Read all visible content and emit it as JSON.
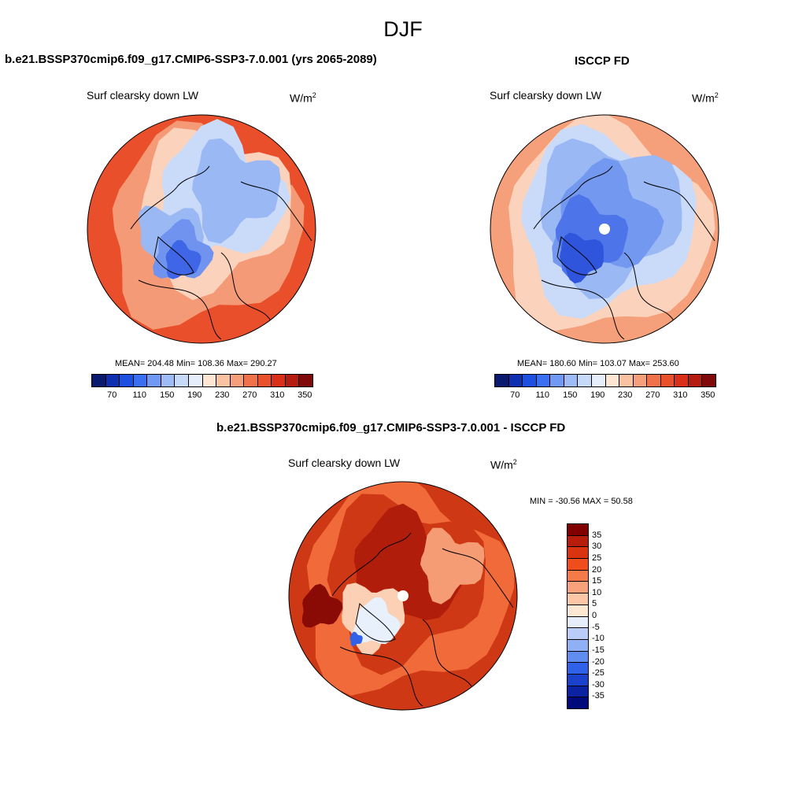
{
  "figure": {
    "title": "DJF",
    "units_base": "W/m",
    "units_exp": "2",
    "variable": "Surf clearsky down LW"
  },
  "panels": [
    {
      "title": "b.e21.BSSP370cmip6.f09_g17.CMIP6-SSP3-7.0.001 (yrs 2065-2089)",
      "stats": "MEAN= 204.48  Min= 108.36  Max= 290.27"
    },
    {
      "title": "ISCCP FD",
      "stats": "MEAN= 180.60  Min= 103.07  Max= 253.60"
    },
    {
      "title": "b.e21.BSSP370cmip6.f09_g17.CMIP6-SSP3-7.0.001 - ISCCP FD",
      "stats": "MIN = -30.56 MAX =  50.58"
    }
  ],
  "colorbar_abs": {
    "colors": [
      "#0a1a6e",
      "#0d2fb0",
      "#1d4fe0",
      "#3a6ff2",
      "#6f99f5",
      "#9dbbf7",
      "#c7d9f9",
      "#e7eefb",
      "#fde6d2",
      "#f9c2a0",
      "#f5a07a",
      "#f0714a",
      "#e8512b",
      "#d9301a",
      "#b51d10",
      "#800a0a"
    ],
    "tick_labels": [
      "70",
      "110",
      "150",
      "190",
      "230",
      "270",
      "310",
      "350"
    ]
  },
  "colorbar_diff": {
    "colors": [
      "#800000",
      "#b81d0c",
      "#d9330f",
      "#f04d1c",
      "#f57a4a",
      "#f9a17a",
      "#fbc7a6",
      "#fde6d2",
      "#e7eefb",
      "#b9cdf8",
      "#8fb0f4",
      "#5f8df0",
      "#2f62e8",
      "#1a42cc",
      "#0b23a2",
      "#000a7a"
    ],
    "tick_labels": [
      "35",
      "30",
      "25",
      "20",
      "15",
      "10",
      "5",
      "0",
      "-5",
      "-10",
      "-15",
      "-20",
      "-25",
      "-30",
      "-35"
    ]
  },
  "map_fills": {
    "model": [
      "#e94f2a",
      "#f59a76",
      "#fbd3bd",
      "#c9dbf9",
      "#9ab8f4",
      "#6f93ee",
      "#3e66e6"
    ],
    "obs": [
      "#f5a07a",
      "#fbd3bd",
      "#c9dbf9",
      "#9ab8f4",
      "#7398ef",
      "#4d74e8",
      "#2e55dc"
    ],
    "diff": [
      "#cf3815",
      "#b01d0a",
      "#f06a3a",
      "#f59c75",
      "#fbd0b5",
      "#e8f0fb",
      "#8fb0f4",
      "#2f62e8",
      "#8a0a05"
    ]
  },
  "map_centers": {
    "model": [
      256,
      291
    ],
    "obs": [
      768,
      291
    ],
    "diff": [
      512,
      757
    ]
  }
}
